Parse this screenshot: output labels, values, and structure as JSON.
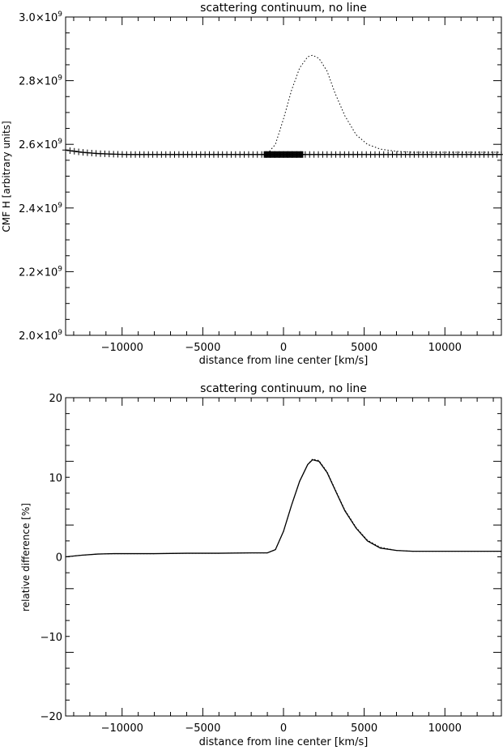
{
  "chart_data": [
    {
      "type": "line",
      "title": "scattering continuum, no line",
      "xlabel": "distance from line center [km/s]",
      "ylabel": "CMF H [arbitrary units]",
      "xlim": [
        -13500,
        13500
      ],
      "ylim": [
        2.0,
        3.0
      ],
      "y_unit_exponent_note": "×10⁹",
      "xticks": [
        {
          "value": -10000,
          "label": "−10000"
        },
        {
          "value": -5000,
          "label": "−5000"
        },
        {
          "value": 0,
          "label": "0"
        },
        {
          "value": 5000,
          "label": "5000"
        },
        {
          "value": 10000,
          "label": "10000"
        }
      ],
      "yticks": [
        {
          "value": 2.0,
          "mant": "2.0×10",
          "exp": "9"
        },
        {
          "value": 2.2,
          "mant": "2.2×10",
          "exp": "9"
        },
        {
          "value": 2.4,
          "mant": "2.4×10",
          "exp": "9"
        },
        {
          "value": 2.6,
          "mant": "2.6×10",
          "exp": "9"
        },
        {
          "value": 2.8,
          "mant": "2.8×10",
          "exp": "9"
        },
        {
          "value": 3.0,
          "mant": "3.0×10",
          "exp": "9"
        }
      ],
      "series": [
        {
          "style": "plus-markers",
          "x": [
            -13500,
            -12500,
            -11500,
            -10500,
            -9500,
            -8500,
            -7500,
            -6500,
            -5500,
            -4500,
            -3500,
            -2500,
            -1500,
            0,
            1500,
            2500,
            3500,
            4500,
            5500,
            6500,
            7500,
            8500,
            9500,
            10500,
            11500,
            12500,
            13500
          ],
          "y": [
            2.582,
            2.575,
            2.571,
            2.569,
            2.568,
            2.568,
            2.568,
            2.568,
            2.568,
            2.568,
            2.568,
            2.568,
            2.568,
            2.568,
            2.568,
            2.568,
            2.568,
            2.568,
            2.568,
            2.568,
            2.568,
            2.568,
            2.568,
            2.568,
            2.568,
            2.568,
            2.568
          ]
        },
        {
          "style": "dotted",
          "x": [
            -1000,
            -500,
            0,
            500,
            1000,
            1500,
            1800,
            2200,
            2700,
            3200,
            3800,
            4500,
            5200,
            6000,
            7000,
            8000,
            10000,
            13500
          ],
          "y": [
            2.57,
            2.6,
            2.68,
            2.77,
            2.84,
            2.875,
            2.88,
            2.87,
            2.83,
            2.76,
            2.69,
            2.63,
            2.6,
            2.585,
            2.578,
            2.575,
            2.575,
            2.575
          ]
        }
      ],
      "dense_markers_x_range": [
        -1200,
        1200
      ]
    },
    {
      "type": "line",
      "title": "scattering continuum, no line",
      "xlabel": "distance from line center [km/s]",
      "ylabel": "relative difference [%]",
      "xlim": [
        -13500,
        13500
      ],
      "ylim": [
        -20,
        20
      ],
      "xticks": [
        {
          "value": -10000,
          "label": "−10000"
        },
        {
          "value": -5000,
          "label": "−5000"
        },
        {
          "value": 0,
          "label": "0"
        },
        {
          "value": 5000,
          "label": "5000"
        },
        {
          "value": 10000,
          "label": "10000"
        }
      ],
      "yticks": [
        {
          "value": -20,
          "label": "−20"
        },
        {
          "value": -10,
          "label": "−10"
        },
        {
          "value": 0,
          "label": "0"
        },
        {
          "value": 10,
          "label": "10"
        },
        {
          "value": 20,
          "label": "20"
        }
      ],
      "series": [
        {
          "style": "solid",
          "x": [
            -13500,
            -12500,
            -11500,
            -10500,
            -9500,
            -8000,
            -6000,
            -4000,
            -2000,
            -1000,
            -500,
            0,
            500,
            1000,
            1500,
            1800,
            2200,
            2700,
            3200,
            3800,
            4500,
            5200,
            6000,
            7000,
            8000,
            10000,
            13500
          ],
          "y": [
            0.0,
            0.2,
            0.35,
            0.4,
            0.4,
            0.4,
            0.45,
            0.45,
            0.5,
            0.5,
            0.9,
            3.2,
            6.5,
            9.5,
            11.6,
            12.2,
            12.0,
            10.6,
            8.4,
            5.8,
            3.6,
            2.0,
            1.1,
            0.8,
            0.7,
            0.7,
            0.7
          ]
        },
        {
          "style": "dotted",
          "x": [
            -13500,
            -12500,
            -11500,
            -10500,
            -9500,
            -8000,
            -6000,
            -4000,
            -2000,
            -1000,
            -500,
            0,
            500,
            1000,
            1500,
            1800,
            2200,
            2700,
            3200,
            3800,
            4500,
            5200,
            6000,
            7000,
            8000,
            10000,
            13500
          ],
          "y": [
            0.0,
            0.2,
            0.35,
            0.4,
            0.4,
            0.4,
            0.45,
            0.45,
            0.5,
            0.5,
            0.9,
            3.2,
            6.5,
            9.5,
            11.6,
            12.3,
            12.1,
            10.7,
            8.5,
            5.9,
            3.7,
            2.1,
            1.2,
            0.8,
            0.7,
            0.7,
            0.7
          ]
        }
      ]
    }
  ]
}
